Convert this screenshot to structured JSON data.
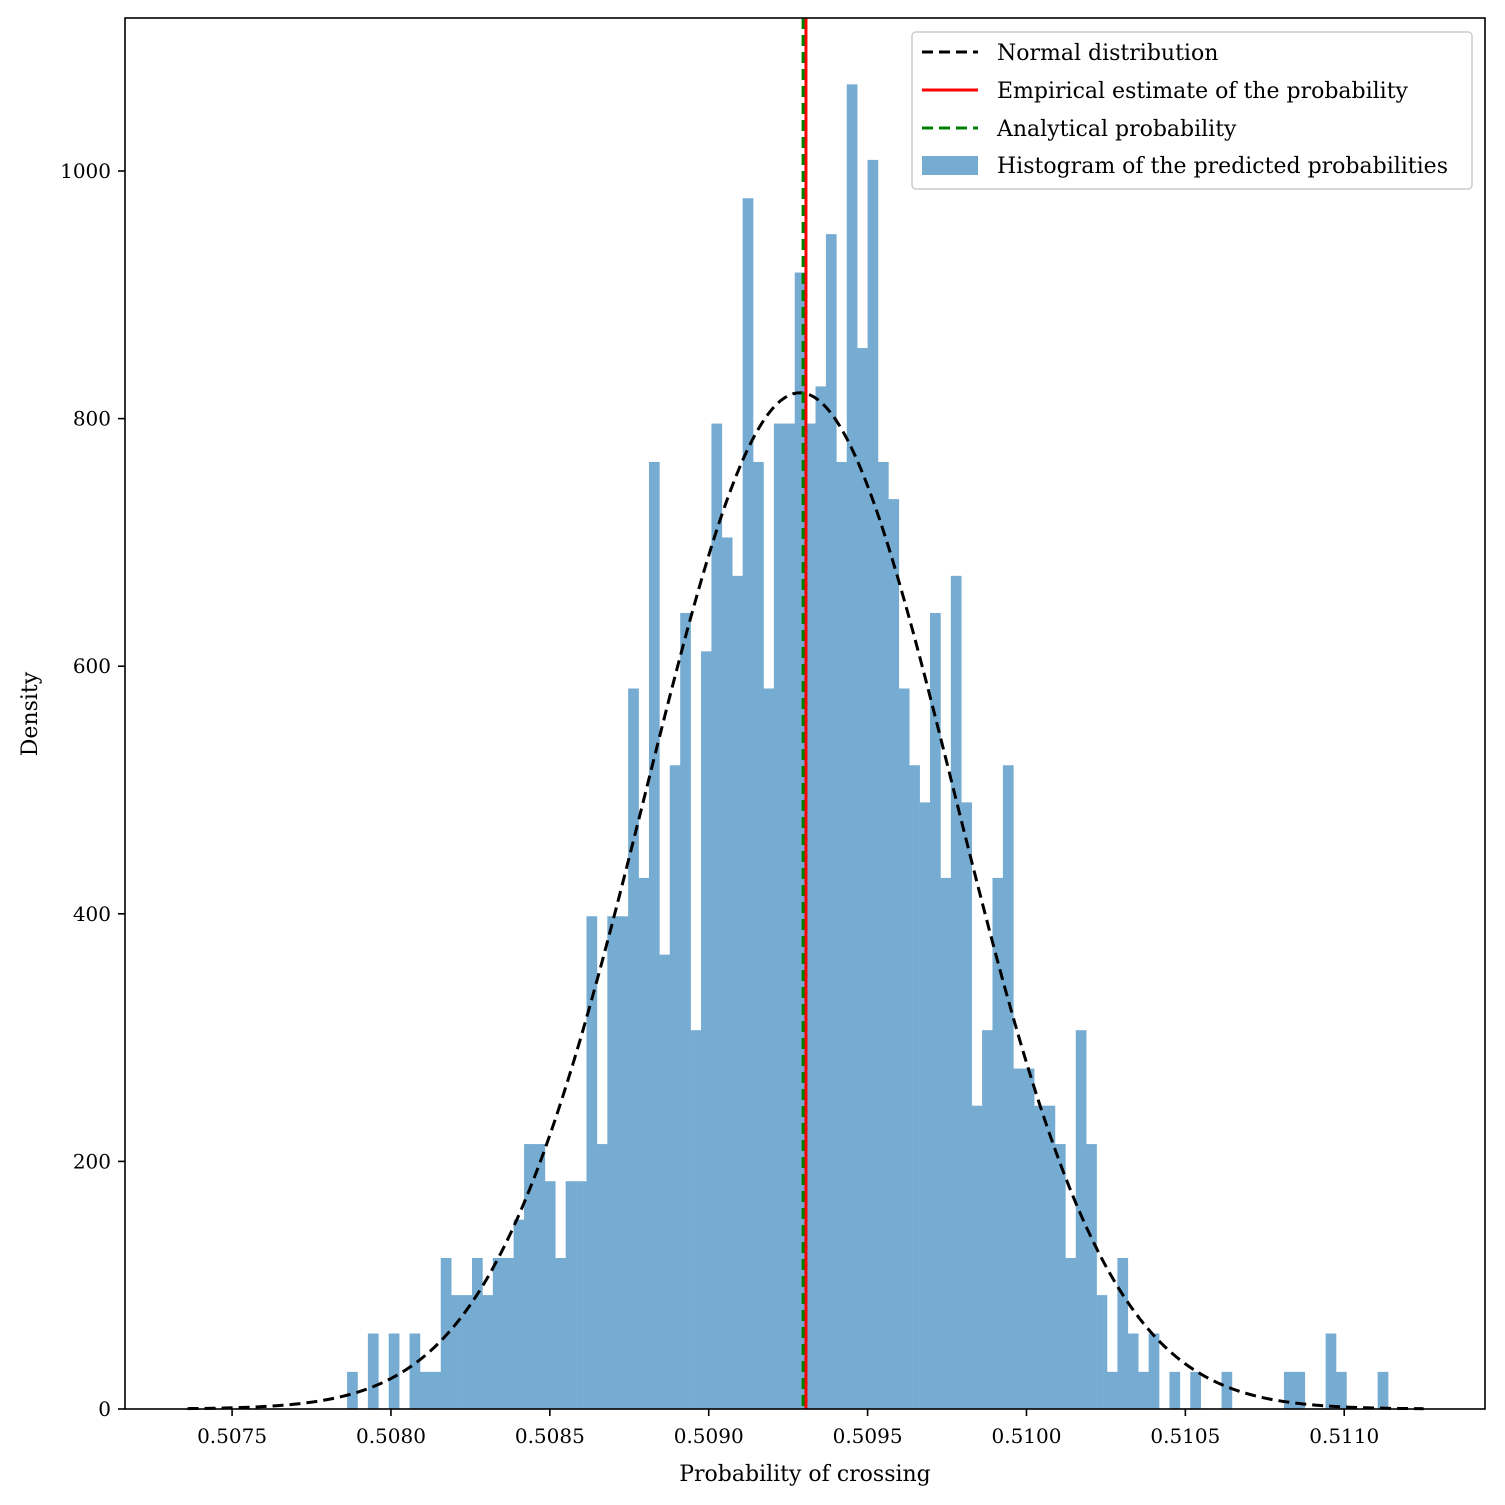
{
  "chart_data": {
    "type": "bar",
    "xlabel": "Probability of crossing",
    "ylabel": "Density",
    "xlim": [
      0.507163,
      0.511443
    ],
    "ylim": [
      0,
      1123.6
    ],
    "grid": false,
    "legend_position": "top-right",
    "xticks": [
      0.5075,
      0.508,
      0.5085,
      0.509,
      0.5095,
      0.51,
      0.5105,
      0.511
    ],
    "xtick_labels": [
      "0.5075",
      "0.5080",
      "0.5085",
      "0.5090",
      "0.5095",
      "0.5100",
      "0.5105",
      "0.5110"
    ],
    "yticks": [
      0,
      200,
      400,
      600,
      800,
      1000
    ],
    "ytick_labels": [
      "0",
      "200",
      "400",
      "600",
      "800",
      "1000"
    ],
    "histogram": {
      "name": "Histogram of the predicted probabilities",
      "color": "#77acd2",
      "bin_start": 0.5078619,
      "bin_width": 3.276e-05,
      "values": [
        30,
        0,
        61,
        0,
        61,
        0,
        61,
        30,
        30,
        122,
        92,
        92,
        122,
        92,
        122,
        122,
        153,
        214,
        214,
        184,
        122,
        184,
        184,
        398,
        214,
        398,
        398,
        582,
        429,
        765,
        367,
        520,
        643,
        306,
        612,
        796,
        704,
        673,
        978,
        765,
        582,
        796,
        796,
        918,
        796,
        826,
        949,
        765,
        1070,
        857,
        1009,
        765,
        735,
        582,
        520,
        490,
        643,
        429,
        673,
        490,
        245,
        306,
        429,
        520,
        275,
        275,
        245,
        245,
        214,
        122,
        306,
        214,
        92,
        30,
        122,
        61,
        30,
        61,
        0,
        30,
        0,
        30,
        0,
        0,
        30,
        0,
        0,
        0,
        0,
        0,
        30,
        30,
        0,
        0,
        61,
        30,
        0,
        0,
        0,
        30
      ]
    },
    "normal": {
      "name": "Normal distribution",
      "mean": 0.509287,
      "std": 0.000486,
      "range": [
        0.50736,
        0.51125
      ],
      "color": "#000000"
    },
    "empirical": {
      "name": "Empirical estimate of the probability",
      "x": 0.509306,
      "color": "#ff0000"
    },
    "analytical": {
      "name": "Analytical probability",
      "x": 0.509297,
      "color": "#008000"
    }
  }
}
